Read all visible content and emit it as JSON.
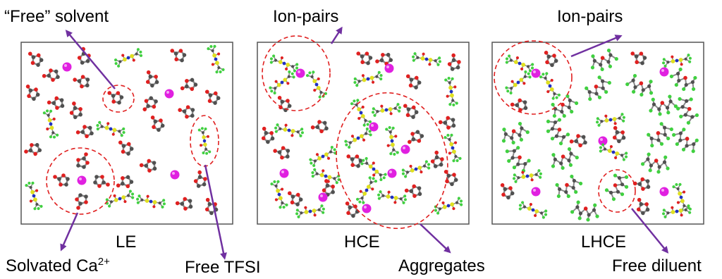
{
  "labels": {
    "free_solvent": "“Free” solvent",
    "ion_pairs_1": "Ion-pairs",
    "ion_pairs_2": "Ion-pairs",
    "solvated_ca": "Solvated Ca",
    "solvated_ca_charge": "2+",
    "free_tfsi": "Free TFSI",
    "aggregates": "Aggregates",
    "free_diluent": "Free diluent"
  },
  "panels": {
    "le": "LE",
    "hce": "HCE",
    "lhce": "LHCE"
  },
  "colors": {
    "arrow": "#7030a0",
    "circle": "#e02020",
    "cation": "#e020e0",
    "solvent_atom": "#505050",
    "solvent_oxygen": "#e02020",
    "tfsi_fluorine": "#40d040",
    "tfsi_sulfur": "#e0e020",
    "tfsi_nitrogen": "#2030c0",
    "frame": "#555555"
  }
}
